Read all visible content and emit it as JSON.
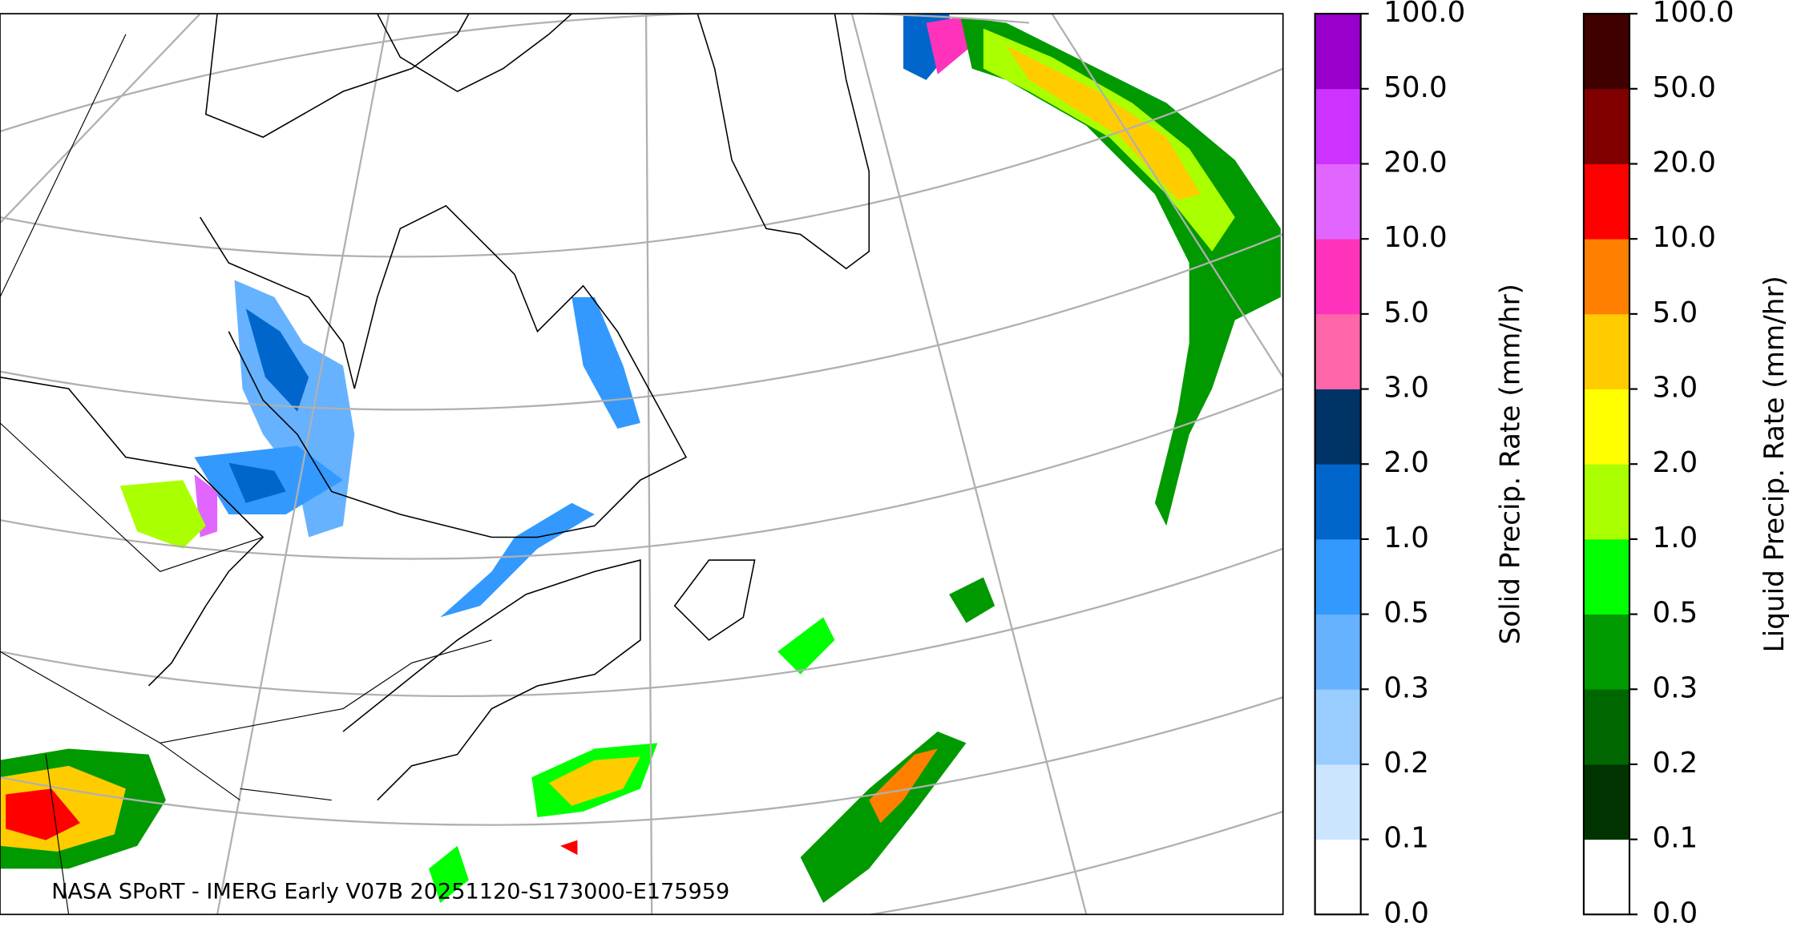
{
  "map": {
    "credit": "NASA SPoRT - IMERG Early V07B 20251120-S173000-E175959"
  },
  "colorbars": [
    {
      "label": "Solid Precip. Rate (mm/hr)",
      "ticks": [
        "0.0",
        "0.1",
        "0.2",
        "0.3",
        "0.5",
        "1.0",
        "2.0",
        "3.0",
        "5.0",
        "10.0",
        "20.0",
        "50.0",
        "100.0"
      ],
      "colors": [
        "#ffffff",
        "#cce5ff",
        "#99ccff",
        "#66b2ff",
        "#3399ff",
        "#0066cc",
        "#003366",
        "#ff66aa",
        "#ff33bb",
        "#e066ff",
        "#cc33ff",
        "#9900cc"
      ]
    },
    {
      "label": "Liquid Precip. Rate (mm/hr)",
      "ticks": [
        "0.0",
        "0.1",
        "0.2",
        "0.3",
        "0.5",
        "1.0",
        "2.0",
        "3.0",
        "5.0",
        "10.0",
        "20.0",
        "50.0",
        "100.0"
      ],
      "colors": [
        "#ffffff",
        "#003300",
        "#006600",
        "#009900",
        "#00ff00",
        "#aaff00",
        "#ffff00",
        "#ffcc00",
        "#ff8000",
        "#ff0000",
        "#800000",
        "#400000"
      ]
    }
  ]
}
